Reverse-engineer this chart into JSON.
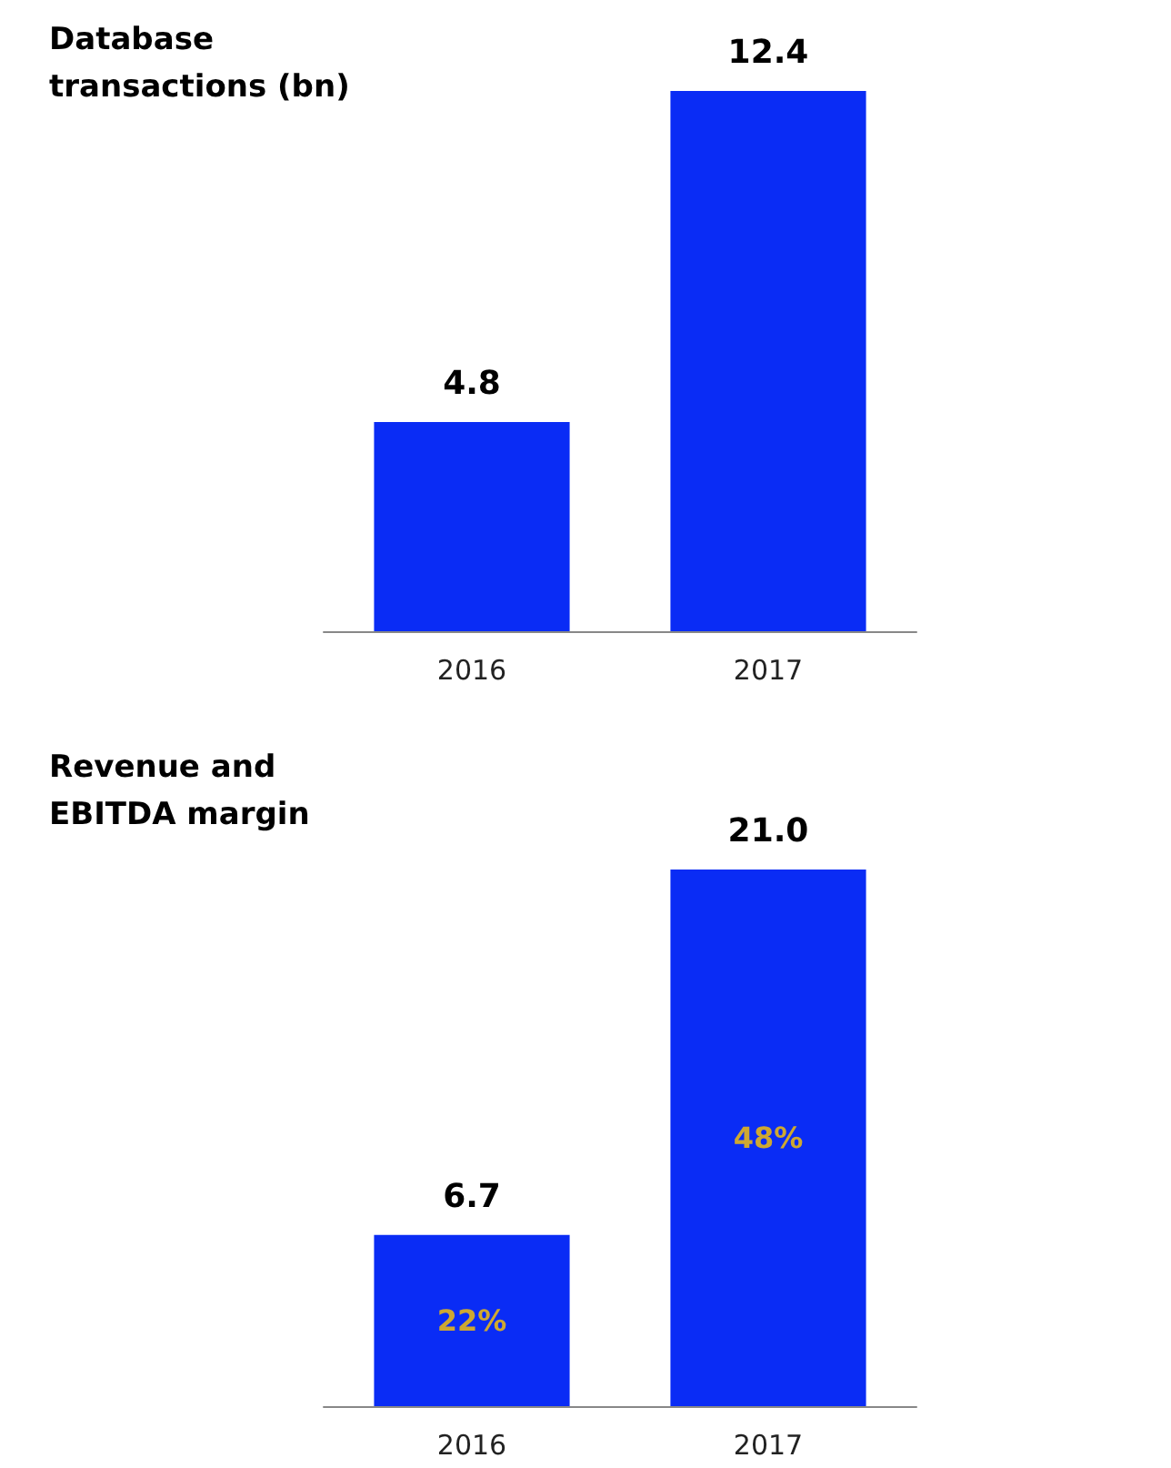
{
  "chart_data": [
    {
      "type": "bar",
      "title": "Database transactions (bn)",
      "categories": [
        "2016",
        "2017"
      ],
      "values": [
        4.8,
        12.4
      ],
      "color": "#0a2cf5",
      "value_labels": [
        "4.8",
        "12.4"
      ]
    },
    {
      "type": "bar",
      "title": "Revenue and EBITDA margin",
      "categories": [
        "2016",
        "2017"
      ],
      "values": [
        6.7,
        21.0
      ],
      "color": "#0a2cf5",
      "value_labels": [
        "6.7",
        "21.0"
      ],
      "annotations": [
        "22%",
        "48%"
      ]
    }
  ]
}
